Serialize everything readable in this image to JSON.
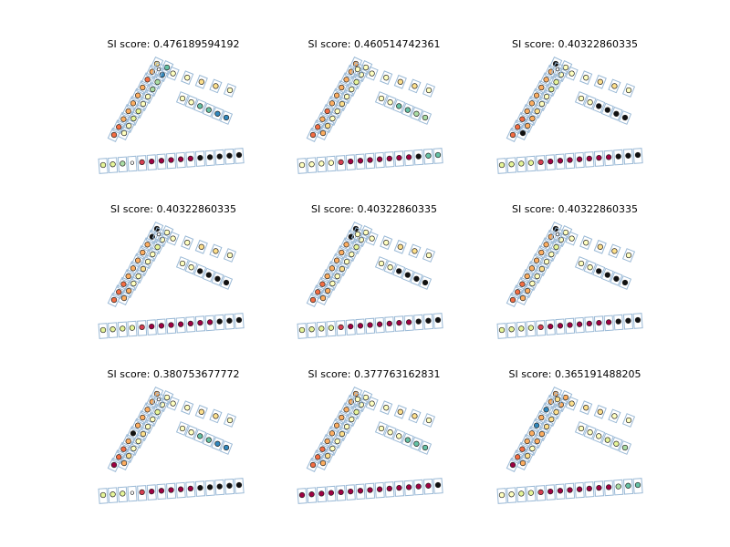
{
  "chart_data": {
    "type": "scatter",
    "grid": false,
    "colors": {
      "box_edge": "#9ab9d6",
      "marker_edge": "#222222",
      "palette": [
        "#9e0142",
        "#d53e4f",
        "#f46d43",
        "#fdae61",
        "#fee08b",
        "#ffffbf",
        "#e6f598",
        "#abdda4",
        "#66c2a5",
        "#3288bd",
        "#111111",
        "#ffffff"
      ]
    },
    "panels": [
      {
        "title": "SI score: 0.476189594192",
        "markers": {
          "upper": [
            2,
            2,
            3,
            3,
            3,
            3,
            3,
            2,
            3,
            4,
            5,
            5,
            6,
            6,
            5,
            5,
            7,
            7,
            9,
            8
          ],
          "right": [
            11,
            5,
            5,
            4,
            4,
            5,
            5,
            5,
            8,
            8,
            9,
            9
          ],
          "bottom": [
            6,
            6,
            7,
            11,
            1,
            0,
            0,
            0,
            0,
            0,
            10,
            10,
            10,
            10,
            10
          ]
        }
      },
      {
        "title": "SI score: 0.460514742361",
        "markers": {
          "upper": [
            2,
            2,
            3,
            2,
            3,
            3,
            3,
            3,
            3,
            3,
            3,
            4,
            5,
            5,
            4,
            5,
            5,
            6,
            5,
            5
          ],
          "right": [
            5,
            5,
            5,
            4,
            4,
            5,
            5,
            5,
            8,
            8,
            7,
            7
          ],
          "bottom": [
            5,
            5,
            5,
            5,
            1,
            0,
            0,
            0,
            0,
            0,
            0,
            0,
            10,
            8,
            8
          ]
        }
      },
      {
        "title": "SI score: 0.40322860335",
        "markers": {
          "upper": [
            2,
            2,
            2,
            3,
            3,
            3,
            3,
            3,
            3,
            10,
            10,
            3,
            3,
            4,
            5,
            5,
            6,
            6,
            5,
            5
          ],
          "right": [
            11,
            5,
            5,
            4,
            4,
            5,
            5,
            5,
            10,
            10,
            10,
            10
          ],
          "bottom": [
            6,
            6,
            6,
            6,
            1,
            0,
            0,
            0,
            0,
            0,
            0,
            0,
            10,
            10,
            10
          ]
        }
      },
      {
        "title": "SI score: 0.40322860335",
        "markers": {
          "upper": [
            2,
            2,
            2,
            3,
            3,
            3,
            3,
            3,
            10,
            10,
            3,
            3,
            5,
            5,
            4,
            5,
            5,
            6,
            5,
            5
          ],
          "right": [
            11,
            5,
            5,
            4,
            4,
            5,
            5,
            5,
            10,
            10,
            10,
            10
          ],
          "bottom": [
            6,
            6,
            6,
            6,
            1,
            0,
            0,
            0,
            0,
            0,
            0,
            0,
            10,
            10,
            10
          ]
        }
      },
      {
        "title": "SI score: 0.40322860335",
        "markers": {
          "upper": [
            2,
            2,
            2,
            3,
            3,
            3,
            3,
            3,
            10,
            10,
            3,
            3,
            5,
            5,
            4,
            5,
            5,
            6,
            5,
            5
          ],
          "right": [
            5,
            5,
            5,
            4,
            4,
            5,
            5,
            5,
            10,
            10,
            10,
            10
          ],
          "bottom": [
            6,
            6,
            6,
            6,
            1,
            0,
            0,
            0,
            0,
            0,
            0,
            0,
            10,
            10,
            10
          ]
        }
      },
      {
        "title": "SI score: 0.40322860335",
        "markers": {
          "upper": [
            2,
            2,
            2,
            3,
            3,
            3,
            3,
            3,
            3,
            10,
            3,
            3,
            5,
            5,
            4,
            5,
            5,
            6,
            5,
            5
          ],
          "right": [
            11,
            5,
            5,
            4,
            4,
            5,
            5,
            5,
            10,
            10,
            10,
            10
          ],
          "bottom": [
            6,
            6,
            6,
            6,
            1,
            0,
            0,
            0,
            0,
            0,
            0,
            0,
            10,
            10,
            10
          ]
        }
      },
      {
        "title": "SI score: 0.380753677772",
        "markers": {
          "upper": [
            0,
            2,
            2,
            3,
            10,
            3,
            3,
            3,
            3,
            3,
            3,
            4,
            5,
            5,
            4,
            5,
            5,
            6,
            5,
            5
          ],
          "right": [
            11,
            5,
            5,
            4,
            4,
            5,
            5,
            5,
            8,
            8,
            9,
            9
          ],
          "bottom": [
            6,
            6,
            6,
            11,
            1,
            0,
            0,
            0,
            0,
            0,
            10,
            10,
            10,
            10,
            10
          ]
        }
      },
      {
        "title": "SI score: 0.377763162831",
        "markers": {
          "upper": [
            2,
            2,
            2,
            3,
            3,
            3,
            3,
            3,
            3,
            3,
            3,
            4,
            5,
            5,
            4,
            5,
            5,
            6,
            5,
            5
          ],
          "right": [
            5,
            5,
            5,
            4,
            4,
            5,
            5,
            5,
            5,
            8,
            8,
            8
          ],
          "bottom": [
            0,
            0,
            0,
            0,
            0,
            0,
            0,
            0,
            0,
            0,
            0,
            0,
            0,
            0,
            10
          ]
        }
      },
      {
        "title": "SI score: 0.365191488205",
        "markers": {
          "upper": [
            0,
            2,
            2,
            3,
            3,
            9,
            3,
            9,
            3,
            3,
            3,
            4,
            5,
            3,
            3,
            4,
            4,
            4,
            3,
            3
          ],
          "right": [
            4,
            4,
            4,
            4,
            5,
            5,
            5,
            5,
            5,
            6,
            6,
            7
          ],
          "bottom": [
            5,
            5,
            6,
            6,
            1,
            0,
            0,
            0,
            0,
            0,
            0,
            0,
            7,
            8,
            8
          ]
        }
      }
    ]
  }
}
